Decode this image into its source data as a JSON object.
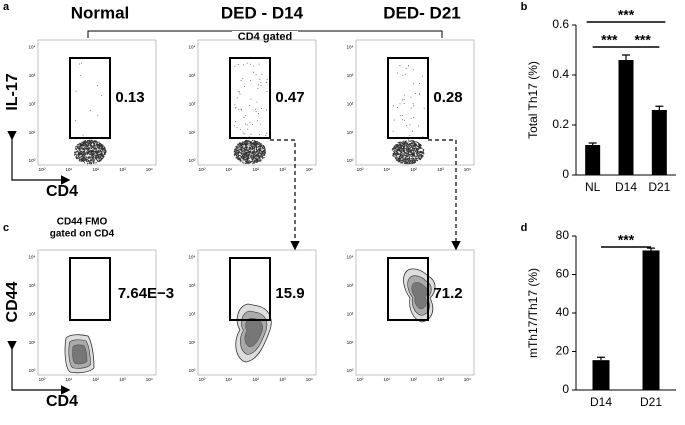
{
  "panel_letters": [
    "a",
    "b",
    "c",
    "d"
  ],
  "flow": {
    "headers": [
      "Normal",
      "DED - D14",
      "DED- D21"
    ],
    "gate_label": "CD4 gated",
    "fmo_label": [
      "CD44 FMO",
      "gated on CD4"
    ],
    "log_ticks": [
      "10⁰",
      "10¹",
      "10²",
      "10³",
      "10⁴"
    ],
    "row1": {
      "y_label": "IL-17",
      "x_label": "CD4",
      "gate_values": [
        "0.13",
        "0.47",
        "0.28"
      ]
    },
    "row2": {
      "y_label": "CD44",
      "x_label": "CD4",
      "gate_values": [
        "7.64E−3",
        "15.9",
        "71.2"
      ]
    }
  },
  "chart_data": [
    {
      "type": "bar",
      "y_label": "Total Th17 (%)",
      "categories": [
        "NL",
        "D14",
        "D21"
      ],
      "values": [
        0.12,
        0.46,
        0.26
      ],
      "errors": [
        0.008,
        0.02,
        0.015
      ],
      "color": "#000000",
      "ylim": [
        0,
        0.6
      ],
      "yticks": [
        0,
        0.2,
        0.4,
        0.6
      ],
      "significance": [
        {
          "from": 0,
          "to": 2,
          "label": "***"
        },
        {
          "from": 0,
          "to": 1,
          "label": "***"
        },
        {
          "from": 1,
          "to": 2,
          "label": "***"
        }
      ]
    },
    {
      "type": "bar",
      "y_label": "mTh17/Th17 (%)",
      "categories": [
        "D14",
        "D21"
      ],
      "values": [
        15.5,
        72.5
      ],
      "errors": [
        1.5,
        1.2
      ],
      "color": "#000000",
      "ylim": [
        0,
        80
      ],
      "yticks": [
        0,
        20,
        40,
        60,
        80
      ],
      "significance": [
        {
          "from": 0,
          "to": 1,
          "label": "***"
        }
      ]
    }
  ]
}
